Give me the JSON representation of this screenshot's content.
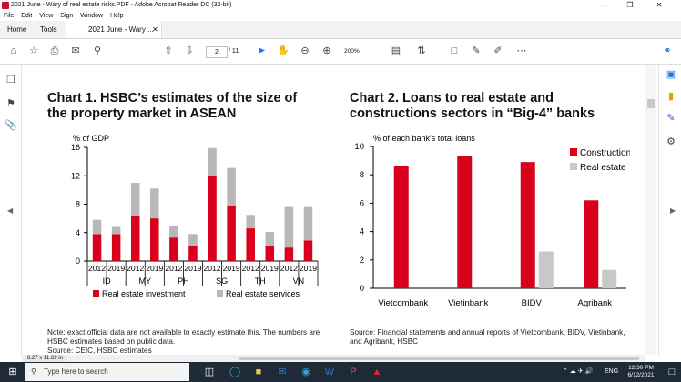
{
  "window": {
    "title": "2021 June - Wary of real estate risks.PDF - Adobe Acrobat Reader DC (32-bit)"
  },
  "menu": [
    "File",
    "Edit",
    "View",
    "Sign",
    "Window",
    "Help"
  ],
  "tabs": {
    "home": "Home",
    "tools": "Tools",
    "doc": "2021 June - Wary ..."
  },
  "toolbar": {
    "page_current": "2",
    "page_total": "/ 11",
    "zoom": "200%"
  },
  "status": {
    "page_size": "8.27 x 11.69 in"
  },
  "taskbar": {
    "search_placeholder": "Type here to search",
    "time": "12:30 PM",
    "date": "6/12/2021",
    "lang": "ENG"
  },
  "colors": {
    "red": "#d9001b",
    "grey": "#b8b8b8"
  },
  "chart1": {
    "title_line1": "Chart 1. HSBC’s estimates of the size of",
    "title_line2": "the property market in ASEAN",
    "note_line1": "Note: exact official data are not available to exactly estimate this. The numbers are",
    "note_line2": "HSBC estimates based on public data.",
    "note_line3": "Source: CEIC, HSBC estimates"
  },
  "chart2": {
    "title_line1": "Chart 2. Loans to real estate and",
    "title_line2": "constructions sectors in “Big-4” banks",
    "source_line1": "Source: Financial statements and annual reports of Vietcombank, BIDV, Vietinbank,",
    "source_line2": "and Agribank, HSBC"
  },
  "chart_data": [
    {
      "type": "bar",
      "stacked": true,
      "ylabel": "% of GDP",
      "ylim": [
        0,
        16
      ],
      "yticks": [
        "0",
        "4",
        "8",
        "12",
        "16"
      ],
      "groups": [
        "ID",
        "MY",
        "PH",
        "SG",
        "TH",
        "VN"
      ],
      "categories": [
        "2012",
        "2019",
        "2012",
        "2019",
        "2012",
        "2019",
        "2012",
        "2019",
        "2012",
        "2019",
        "2012",
        "2019"
      ],
      "series": [
        {
          "name": "Real estate investment",
          "color": "#d9001b",
          "values": [
            3.8,
            3.8,
            6.4,
            6.0,
            3.3,
            2.2,
            12.0,
            7.8,
            4.6,
            2.2,
            1.9,
            2.9
          ]
        },
        {
          "name": "Real estate services",
          "color": "#b8b8b8",
          "values": [
            2.0,
            1.0,
            4.6,
            4.2,
            1.6,
            1.6,
            3.9,
            5.3,
            1.9,
            1.9,
            5.7,
            4.7
          ]
        }
      ],
      "grid": false,
      "legend": "bottom"
    },
    {
      "type": "bar",
      "ylabel": "% of each bank's total loans",
      "ylim": [
        0,
        10
      ],
      "yticks": [
        "0",
        "2",
        "4",
        "6",
        "8",
        "10"
      ],
      "categories": [
        "Vietcombank",
        "Vietinbank",
        "BIDV",
        "Agribank"
      ],
      "series": [
        {
          "name": "Construction",
          "color": "#d9001b",
          "values": [
            8.6,
            9.3,
            8.9,
            6.2
          ]
        },
        {
          "name": "Real estate",
          "color": "#c8c8c8",
          "values": [
            null,
            null,
            2.6,
            1.3
          ]
        }
      ],
      "grid": false,
      "legend": "top-right"
    }
  ]
}
